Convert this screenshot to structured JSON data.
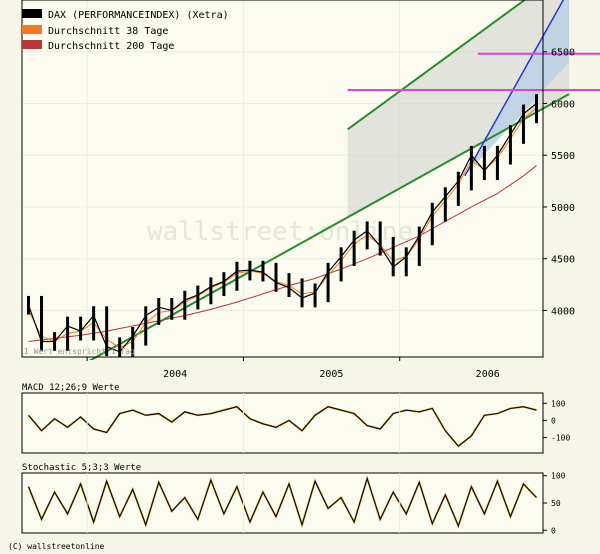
{
  "legend": [
    {
      "label": "DAX (PERFORMANCEINDEX) (Xetra)",
      "color": "#000000"
    },
    {
      "label": "Durchschnitt 38 Tage",
      "color": "#f47a20"
    },
    {
      "label": "Durchschnitt 200 Tage",
      "color": "#b8363c"
    }
  ],
  "watermark": "wallstreet:online",
  "footnote": "1 Wert entspricht 1 Tag",
  "copyright": "(C) wallstreetonline",
  "colors": {
    "price": "#000000",
    "ma38": "#f47a20",
    "ma200": "#b8363c",
    "trend": "#2c8a2c",
    "horizontal": "#e040e0",
    "blue_line": "#2a38c8",
    "channel_fill": "#d0d0d0",
    "triangle_fill": "#b6d0e6",
    "background": "#f6f6e6",
    "plot_bg": "#fbfbf0",
    "grid": "#ecece0"
  },
  "chart_data": [
    {
      "type": "line",
      "title": "DAX (PERFORMANCEINDEX) (Xetra)",
      "x_ticks": [
        "2004",
        "2005",
        "2006"
      ],
      "x_range": [
        "2003-08",
        "2006-11"
      ],
      "y_ticks": [
        4000,
        4500,
        5000,
        5500,
        6000,
        6500
      ],
      "ylim": [
        3550,
        7000
      ],
      "grid": true,
      "legend_position": "top-left",
      "series": [
        {
          "name": "DAX (PERFORMANCEINDEX) (Xetra)",
          "style": "ohlc",
          "x": [
            "2003-08",
            "2003-09",
            "2003-10",
            "2003-11",
            "2003-12",
            "2004-01",
            "2004-02",
            "2004-03",
            "2004-04",
            "2004-05",
            "2004-06",
            "2004-07",
            "2004-08",
            "2004-09",
            "2004-10",
            "2004-11",
            "2004-12",
            "2005-01",
            "2005-02",
            "2005-03",
            "2005-04",
            "2005-05",
            "2005-06",
            "2005-07",
            "2005-08",
            "2005-09",
            "2005-10",
            "2005-11",
            "2005-12",
            "2006-01",
            "2006-02",
            "2006-03",
            "2006-04",
            "2006-05",
            "2006-06",
            "2006-07",
            "2006-08",
            "2006-09",
            "2006-10",
            "2006-11"
          ],
          "values": [
            4050,
            3700,
            3700,
            3850,
            3800,
            3950,
            3650,
            3600,
            3750,
            3950,
            4030,
            4000,
            4100,
            4150,
            4230,
            4280,
            4380,
            4390,
            4370,
            4270,
            4220,
            4120,
            4170,
            4370,
            4520,
            4680,
            4770,
            4620,
            4420,
            4520,
            4720,
            4950,
            5100,
            5250,
            5500,
            5350,
            5500,
            5700,
            5900,
            6000
          ]
        },
        {
          "name": "Durchschnitt 38 Tage",
          "x": [
            "2003-08",
            "2003-09",
            "2003-10",
            "2003-11",
            "2003-12",
            "2004-01",
            "2004-02",
            "2004-03",
            "2004-04",
            "2004-05",
            "2004-06",
            "2004-07",
            "2004-08",
            "2004-09",
            "2004-10",
            "2004-11",
            "2004-12",
            "2005-01",
            "2005-02",
            "2005-03",
            "2005-04",
            "2005-05",
            "2005-06",
            "2005-07",
            "2005-08",
            "2005-09",
            "2005-10",
            "2005-11",
            "2005-12",
            "2006-01",
            "2006-02",
            "2006-03",
            "2006-04",
            "2006-05",
            "2006-06",
            "2006-07",
            "2006-08",
            "2006-09",
            "2006-10",
            "2006-11"
          ],
          "values": [
            4000,
            3750,
            3700,
            3780,
            3800,
            3880,
            3720,
            3640,
            3700,
            3880,
            3980,
            4000,
            4080,
            4140,
            4220,
            4270,
            4360,
            4380,
            4360,
            4280,
            4240,
            4160,
            4180,
            4340,
            4480,
            4640,
            4730,
            4630,
            4480,
            4520,
            4690,
            4910,
            5060,
            5220,
            5450,
            5360,
            5470,
            5660,
            5850,
            5960
          ]
        },
        {
          "name": "Durchschnitt 200 Tage",
          "x": [
            "2003-08",
            "2003-10",
            "2003-12",
            "2004-02",
            "2004-04",
            "2004-06",
            "2004-08",
            "2004-10",
            "2004-12",
            "2005-02",
            "2005-04",
            "2005-06",
            "2005-08",
            "2005-10",
            "2005-12",
            "2006-02",
            "2006-04",
            "2006-06",
            "2006-08",
            "2006-10",
            "2006-11"
          ],
          "values": [
            3700,
            3730,
            3760,
            3800,
            3850,
            3900,
            3950,
            4010,
            4080,
            4160,
            4240,
            4310,
            4400,
            4500,
            4610,
            4720,
            4860,
            5000,
            5130,
            5300,
            5400
          ]
        }
      ]
    },
    {
      "type": "line",
      "title": "MACD 12;26;9 Werte",
      "y_ticks": [
        100,
        0,
        -100
      ],
      "ylim": [
        -190,
        160
      ],
      "x_range": [
        "2003-08",
        "2006-11"
      ],
      "series": [
        {
          "name": "MACD",
          "x": [
            "2003-08",
            "2003-09",
            "2003-10",
            "2003-11",
            "2003-12",
            "2004-01",
            "2004-02",
            "2004-03",
            "2004-04",
            "2004-05",
            "2004-06",
            "2004-07",
            "2004-08",
            "2004-09",
            "2004-10",
            "2004-11",
            "2004-12",
            "2005-01",
            "2005-02",
            "2005-03",
            "2005-04",
            "2005-05",
            "2005-06",
            "2005-07",
            "2005-08",
            "2005-09",
            "2005-10",
            "2005-11",
            "2005-12",
            "2006-01",
            "2006-02",
            "2006-03",
            "2006-04",
            "2006-05",
            "2006-06",
            "2006-07",
            "2006-08",
            "2006-09",
            "2006-10",
            "2006-11"
          ],
          "values": [
            30,
            -60,
            10,
            -40,
            20,
            -50,
            -70,
            40,
            60,
            30,
            40,
            -10,
            50,
            30,
            40,
            60,
            80,
            10,
            -20,
            -40,
            0,
            -60,
            30,
            80,
            60,
            40,
            -30,
            -50,
            40,
            60,
            50,
            70,
            -60,
            -150,
            -90,
            30,
            40,
            70,
            80,
            60
          ]
        }
      ]
    },
    {
      "type": "line",
      "title": "Stochastic 5;3;3 Werte",
      "y_ticks": [
        100,
        50,
        0
      ],
      "ylim": [
        -5,
        105
      ],
      "x_range": [
        "2003-08",
        "2006-11"
      ],
      "series": [
        {
          "name": "Stochastic",
          "x": [
            "2003-08",
            "2003-09",
            "2003-10",
            "2003-11",
            "2003-12",
            "2004-01",
            "2004-02",
            "2004-03",
            "2004-04",
            "2004-05",
            "2004-06",
            "2004-07",
            "2004-08",
            "2004-09",
            "2004-10",
            "2004-11",
            "2004-12",
            "2005-01",
            "2005-02",
            "2005-03",
            "2005-04",
            "2005-05",
            "2005-06",
            "2005-07",
            "2005-08",
            "2005-09",
            "2005-10",
            "2005-11",
            "2005-12",
            "2006-01",
            "2006-02",
            "2006-03",
            "2006-04",
            "2006-05",
            "2006-06",
            "2006-07",
            "2006-08",
            "2006-09",
            "2006-10",
            "2006-11"
          ],
          "values": [
            80,
            20,
            70,
            30,
            85,
            15,
            90,
            25,
            75,
            10,
            88,
            35,
            60,
            20,
            92,
            30,
            80,
            15,
            70,
            25,
            85,
            10,
            90,
            40,
            60,
            15,
            95,
            20,
            70,
            30,
            88,
            12,
            65,
            8,
            80,
            30,
            90,
            25,
            85,
            60
          ]
        }
      ]
    }
  ]
}
